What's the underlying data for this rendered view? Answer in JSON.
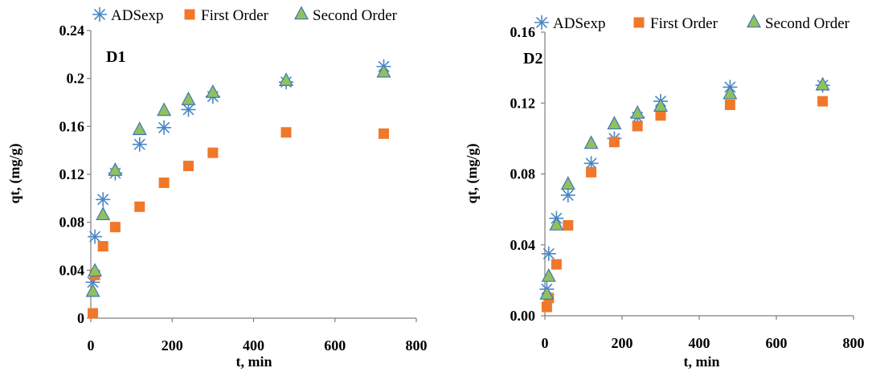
{
  "colors": {
    "adsexp": "#4a86c5",
    "first_order": "#f0782a",
    "second_order_fill": "#92c15a",
    "second_order_edge": "#3f78b8",
    "axis": "#7f7f7f"
  },
  "chart_data": [
    {
      "type": "scatter",
      "title": "D1",
      "xlabel": "t, min",
      "ylabel": "qt, (mg/g)",
      "xlim": [
        0,
        800
      ],
      "ylim": [
        0,
        0.24
      ],
      "xticks": [
        "0",
        "200",
        "400",
        "600",
        "800"
      ],
      "yticks": [
        "0",
        "0.04",
        "0.08",
        "0.12",
        "0.16",
        "0.2",
        "0.24"
      ],
      "legend_position": "top",
      "series": [
        {
          "name": "ADSexp",
          "marker": "asterisk",
          "x": [
            5,
            10,
            30,
            60,
            120,
            180,
            240,
            300,
            480,
            720
          ],
          "y": [
            0.03,
            0.068,
            0.099,
            0.121,
            0.145,
            0.159,
            0.174,
            0.185,
            0.197,
            0.21
          ]
        },
        {
          "name": "First Order",
          "marker": "square",
          "x": [
            5,
            10,
            30,
            60,
            120,
            180,
            240,
            300,
            480,
            720
          ],
          "y": [
            0.004,
            0.036,
            0.06,
            0.076,
            0.093,
            0.113,
            0.127,
            0.138,
            0.155,
            0.154
          ]
        },
        {
          "name": "Second Order",
          "marker": "triangle",
          "x": [
            5,
            10,
            30,
            60,
            120,
            180,
            240,
            300,
            480,
            720
          ],
          "y": [
            0.022,
            0.039,
            0.086,
            0.123,
            0.157,
            0.173,
            0.182,
            0.188,
            0.198,
            0.205
          ]
        }
      ]
    },
    {
      "type": "scatter",
      "title": "D2",
      "xlabel": "t, min",
      "ylabel": "qt, (mg/g)",
      "xlim": [
        0,
        800
      ],
      "ylim": [
        0,
        0.16
      ],
      "xticks": [
        "0",
        "200",
        "400",
        "600",
        "800"
      ],
      "yticks": [
        "0.00",
        "0.04",
        "0.08",
        "0.12",
        "0.16"
      ],
      "legend_position": "top",
      "series": [
        {
          "name": "ADSexp",
          "marker": "asterisk",
          "x": [
            5,
            10,
            30,
            60,
            120,
            180,
            240,
            300,
            480,
            720
          ],
          "y": [
            0.015,
            0.035,
            0.055,
            0.068,
            0.086,
            0.1,
            0.112,
            0.121,
            0.129,
            0.13
          ]
        },
        {
          "name": "First Order",
          "marker": "square",
          "x": [
            5,
            10,
            30,
            60,
            120,
            180,
            240,
            300,
            480,
            720
          ],
          "y": [
            0.005,
            0.01,
            0.029,
            0.051,
            0.081,
            0.098,
            0.107,
            0.113,
            0.119,
            0.121
          ]
        },
        {
          "name": "Second Order",
          "marker": "triangle",
          "x": [
            5,
            10,
            30,
            60,
            120,
            180,
            240,
            300,
            480,
            720
          ],
          "y": [
            0.012,
            0.022,
            0.051,
            0.074,
            0.097,
            0.108,
            0.114,
            0.118,
            0.125,
            0.13
          ]
        }
      ]
    }
  ]
}
